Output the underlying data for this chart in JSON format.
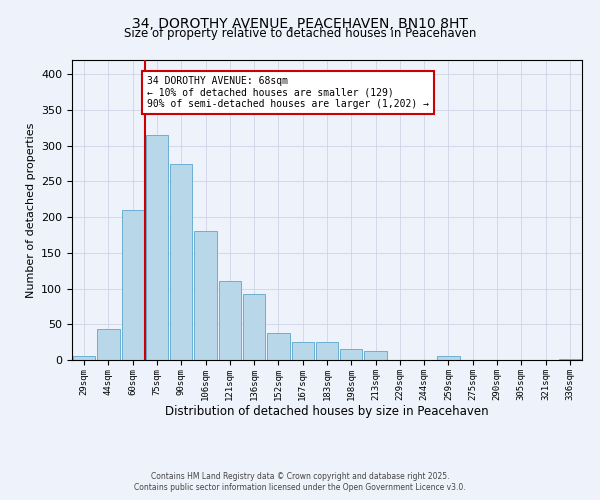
{
  "title": "34, DOROTHY AVENUE, PEACEHAVEN, BN10 8HT",
  "subtitle": "Size of property relative to detached houses in Peacehaven",
  "xlabel": "Distribution of detached houses by size in Peacehaven",
  "ylabel": "Number of detached properties",
  "categories": [
    "29sqm",
    "44sqm",
    "60sqm",
    "75sqm",
    "90sqm",
    "106sqm",
    "121sqm",
    "136sqm",
    "152sqm",
    "167sqm",
    "183sqm",
    "198sqm",
    "213sqm",
    "229sqm",
    "244sqm",
    "259sqm",
    "275sqm",
    "290sqm",
    "305sqm",
    "321sqm",
    "336sqm"
  ],
  "values": [
    5,
    44,
    210,
    315,
    275,
    180,
    110,
    92,
    38,
    25,
    25,
    16,
    13,
    0,
    0,
    5,
    0,
    0,
    0,
    0,
    2
  ],
  "bar_color": "#b8d8ea",
  "bar_edge_color": "#6aafd4",
  "vline_color": "#cc0000",
  "ylim": [
    0,
    420
  ],
  "yticks": [
    0,
    50,
    100,
    150,
    200,
    250,
    300,
    350,
    400
  ],
  "annotation_title": "34 DOROTHY AVENUE: 68sqm",
  "annotation_line1": "← 10% of detached houses are smaller (129)",
  "annotation_line2": "90% of semi-detached houses are larger (1,202) →",
  "annotation_box_color": "#ffffff",
  "annotation_box_edge": "#cc0000",
  "footer1": "Contains HM Land Registry data © Crown copyright and database right 2025.",
  "footer2": "Contains public sector information licensed under the Open Government Licence v3.0.",
  "bg_color": "#eef2fb",
  "plot_bg_color": "#eef2fb",
  "grid_color": "#c8cfe0"
}
